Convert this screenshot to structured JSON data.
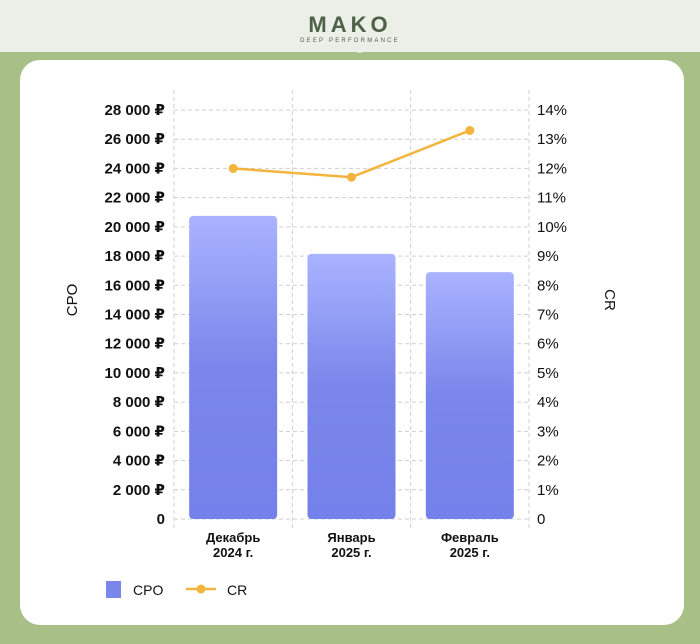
{
  "header": {
    "brand": "MAKO",
    "tagline": "DEEP PERFORMANCE"
  },
  "chart_data": {
    "type": "bar",
    "categories": [
      [
        "Декабрь",
        "2024 г."
      ],
      [
        "Январь",
        "2025 г."
      ],
      [
        "Февраль",
        "2025 г."
      ]
    ],
    "series": [
      {
        "name": "CPO",
        "type": "bar",
        "axis": "left",
        "values": [
          20750,
          18150,
          16900
        ],
        "color": "#7a86ea"
      },
      {
        "name": "CR",
        "type": "line",
        "axis": "right",
        "values": [
          12.0,
          11.7,
          13.3
        ],
        "color": "#f2b43c"
      }
    ],
    "y_left": {
      "label": "CPO",
      "range": [
        0,
        28000
      ],
      "ticks": [
        0,
        2000,
        4000,
        6000,
        8000,
        10000,
        12000,
        14000,
        16000,
        18000,
        20000,
        22000,
        24000,
        26000,
        28000
      ],
      "tick_labels": [
        "0",
        "2 000 ₽",
        "4 000 ₽",
        "6 000 ₽",
        "8 000 ₽",
        "10 000 ₽",
        "12 000 ₽",
        "14 000 ₽",
        "16 000 ₽",
        "18 000 ₽",
        "20 000 ₽",
        "22 000 ₽",
        "24 000 ₽",
        "26 000 ₽",
        "28 000 ₽"
      ]
    },
    "y_right": {
      "label": "CR",
      "range": [
        0,
        14
      ],
      "ticks": [
        0,
        1,
        2,
        3,
        4,
        5,
        6,
        7,
        8,
        9,
        10,
        11,
        12,
        13,
        14
      ],
      "tick_labels": [
        "0",
        "1%",
        "2%",
        "3%",
        "4%",
        "5%",
        "6%",
        "7%",
        "8%",
        "9%",
        "10%",
        "11%",
        "12%",
        "13%",
        "14%"
      ]
    },
    "grid": true,
    "legend": "bottom-left"
  }
}
